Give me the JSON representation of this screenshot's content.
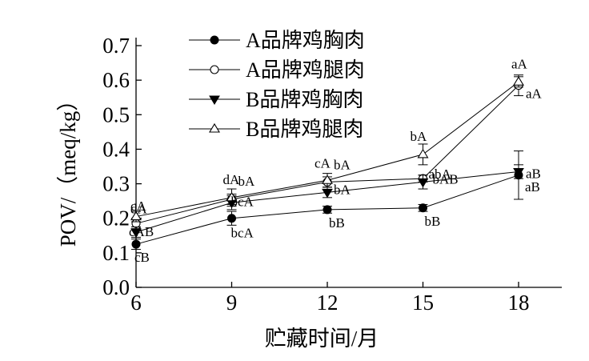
{
  "chart_data": {
    "type": "line",
    "xlabel": "贮藏时间/月",
    "ylabel": "POV/（meq/kg）",
    "x": [
      6,
      9,
      12,
      15,
      18
    ],
    "xticks": [
      "6",
      "9",
      "12",
      "15",
      "18"
    ],
    "yticks": [
      "0.0",
      "0.1",
      "0.2",
      "0.3",
      "0.4",
      "0.5",
      "0.6",
      "0.7"
    ],
    "xlim": [
      6,
      19.3
    ],
    "ylim": [
      0,
      0.7
    ],
    "grid": false,
    "legend_position": "top-center",
    "series": [
      {
        "name": "A品牌鸡胸肉",
        "marker": "filled-circle",
        "values": [
          0.125,
          0.2,
          0.225,
          0.23,
          0.325
        ],
        "errors": [
          0.015,
          0.02,
          0.01,
          0.01,
          0.07
        ],
        "labels": [
          "cB",
          "bcA",
          "bB",
          "bB",
          "aB"
        ]
      },
      {
        "name": "A品牌鸡腿肉",
        "marker": "open-circle",
        "values": [
          0.185,
          0.255,
          0.305,
          0.315,
          0.585
        ],
        "errors": [
          0.015,
          0.015,
          0.015,
          0.01,
          0.03
        ],
        "labels": [
          "cA",
          "bA",
          "bA",
          "abA",
          "aA"
        ]
      },
      {
        "name": "B品牌鸡胸肉",
        "marker": "filled-triangle-down",
        "values": [
          0.16,
          0.245,
          0.275,
          0.305,
          0.335
        ],
        "errors": [
          0.015,
          0.02,
          0.015,
          0.02,
          0.02
        ],
        "labels": [
          "cAB",
          "bcA",
          "bA",
          "bAB",
          "aB"
        ]
      },
      {
        "name": "B品牌鸡腿肉",
        "marker": "open-triangle-up",
        "values": [
          0.205,
          0.26,
          0.31,
          0.385,
          0.595
        ],
        "errors": [
          0.015,
          0.025,
          0.02,
          0.03,
          0.015
        ],
        "labels": [
          "dA",
          "dA",
          "cA",
          "bA",
          "aA"
        ]
      }
    ]
  }
}
